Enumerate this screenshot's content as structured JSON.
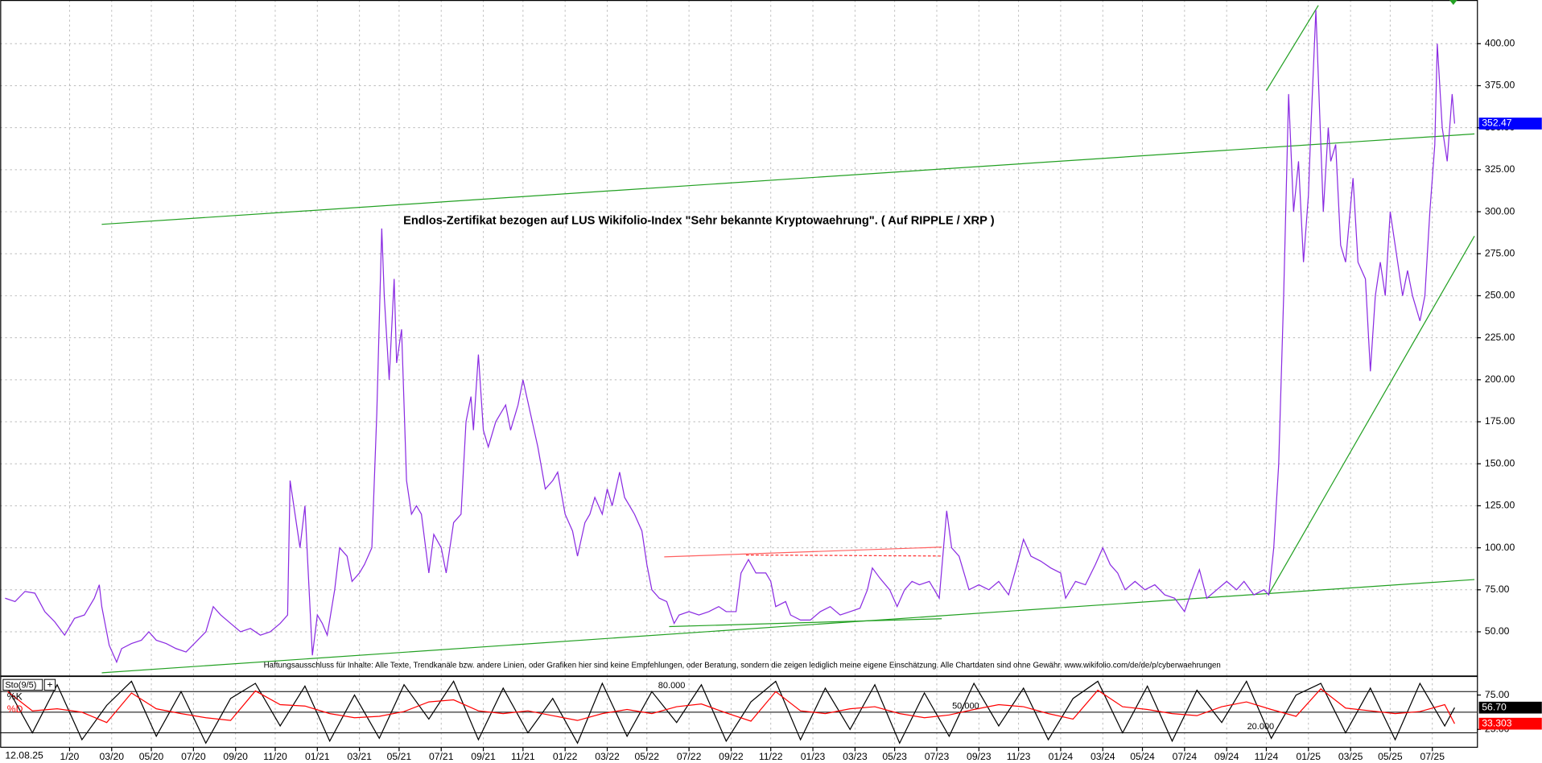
{
  "chart_data": [
    {
      "type": "line",
      "title": "Endlos-Zertifikat bezogen auf LUS Wikifolio-Index \"Sehr bekannte Kryptowaehrung\". ( Auf RIPPLE / XRP )",
      "note": "Haftungsausschluss für Inhalte: Alle Texte, Trendkanäle bzw. andere Linien, oder Grafiken hier sind keine Empfehlungen, oder Beratung, sondern die zeigen lediglich meine eigene Einschätzung. Alle Chartdaten sind ohne Gewähr.  www.wikifolio.com/de/de/p/cyberwaehrungen",
      "date": "12.08.25",
      "xlim": [
        2019.72,
        2025.68
      ],
      "xticks": [
        {
          "value": 2020.0,
          "label": "1/20"
        },
        {
          "value": 2020.17,
          "label": "03/20"
        },
        {
          "value": 2020.33,
          "label": "05/20"
        },
        {
          "value": 2020.5,
          "label": "07/20"
        },
        {
          "value": 2020.67,
          "label": "09/20"
        },
        {
          "value": 2020.83,
          "label": "11/20"
        },
        {
          "value": 2021.0,
          "label": "01/21"
        },
        {
          "value": 2021.17,
          "label": "03/21"
        },
        {
          "value": 2021.33,
          "label": "05/21"
        },
        {
          "value": 2021.5,
          "label": "07/21"
        },
        {
          "value": 2021.67,
          "label": "09/21"
        },
        {
          "value": 2021.83,
          "label": "11/21"
        },
        {
          "value": 2022.0,
          "label": "01/22"
        },
        {
          "value": 2022.17,
          "label": "03/22"
        },
        {
          "value": 2022.33,
          "label": "05/22"
        },
        {
          "value": 2022.5,
          "label": "07/22"
        },
        {
          "value": 2022.67,
          "label": "09/22"
        },
        {
          "value": 2022.83,
          "label": "11/22"
        },
        {
          "value": 2023.0,
          "label": "01/23"
        },
        {
          "value": 2023.17,
          "label": "03/23"
        },
        {
          "value": 2023.33,
          "label": "05/23"
        },
        {
          "value": 2023.5,
          "label": "07/23"
        },
        {
          "value": 2023.67,
          "label": "09/23"
        },
        {
          "value": 2023.83,
          "label": "11/23"
        },
        {
          "value": 2024.0,
          "label": "01/24"
        },
        {
          "value": 2024.17,
          "label": "03/24"
        },
        {
          "value": 2024.33,
          "label": "05/24"
        },
        {
          "value": 2024.5,
          "label": "07/24"
        },
        {
          "value": 2024.67,
          "label": "09/24"
        },
        {
          "value": 2024.83,
          "label": "11/24"
        },
        {
          "value": 2025.0,
          "label": "01/25"
        },
        {
          "value": 2025.17,
          "label": "03/25"
        },
        {
          "value": 2025.33,
          "label": "05/25"
        },
        {
          "value": 2025.5,
          "label": "07/25"
        }
      ],
      "ylim": [
        24,
        426
      ],
      "yticks": [
        {
          "value": 50,
          "label": "50.00"
        },
        {
          "value": 75,
          "label": "75.00"
        },
        {
          "value": 100,
          "label": "100.00"
        },
        {
          "value": 125,
          "label": "125.00"
        },
        {
          "value": 150,
          "label": "150.00"
        },
        {
          "value": 175,
          "label": "175.00"
        },
        {
          "value": 200,
          "label": "200.00"
        },
        {
          "value": 225,
          "label": "225.00"
        },
        {
          "value": 250,
          "label": "250.00"
        },
        {
          "value": 275,
          "label": "275.00"
        },
        {
          "value": 300,
          "label": "300.00"
        },
        {
          "value": 325,
          "label": "325.00"
        },
        {
          "value": 350,
          "label": "350.00"
        },
        {
          "value": 375,
          "label": "375.00"
        },
        {
          "value": 400,
          "label": "400.00"
        }
      ],
      "grid": true,
      "x": [
        2019.74,
        2019.78,
        2019.82,
        2019.86,
        2019.9,
        2019.94,
        2019.98,
        2020.02,
        2020.06,
        2020.1,
        2020.12,
        2020.13,
        2020.16,
        2020.19,
        2020.21,
        2020.25,
        2020.29,
        2020.32,
        2020.35,
        2020.39,
        2020.43,
        2020.47,
        2020.51,
        2020.55,
        2020.58,
        2020.61,
        2020.65,
        2020.69,
        2020.73,
        2020.77,
        2020.81,
        2020.85,
        2020.88,
        2020.89,
        2020.91,
        2020.93,
        2020.95,
        2020.96,
        2020.98,
        2021.0,
        2021.02,
        2021.04,
        2021.07,
        2021.09,
        2021.12,
        2021.14,
        2021.17,
        2021.19,
        2021.22,
        2021.24,
        2021.26,
        2021.27,
        2021.29,
        2021.31,
        2021.32,
        2021.34,
        2021.36,
        2021.38,
        2021.4,
        2021.42,
        2021.45,
        2021.47,
        2021.5,
        2021.52,
        2021.55,
        2021.58,
        2021.6,
        2021.62,
        2021.63,
        2021.65,
        2021.67,
        2021.69,
        2021.72,
        2021.74,
        2021.76,
        2021.78,
        2021.81,
        2021.83,
        2021.86,
        2021.89,
        2021.92,
        2021.95,
        2021.97,
        2022.0,
        2022.03,
        2022.05,
        2022.08,
        2022.1,
        2022.12,
        2022.15,
        2022.17,
        2022.19,
        2022.22,
        2022.24,
        2022.28,
        2022.31,
        2022.33,
        2022.35,
        2022.38,
        2022.41,
        2022.44,
        2022.46,
        2022.5,
        2022.54,
        2022.58,
        2022.62,
        2022.65,
        2022.69,
        2022.71,
        2022.74,
        2022.77,
        2022.81,
        2022.83,
        2022.85,
        2022.89,
        2022.91,
        2022.95,
        2022.99,
        2023.03,
        2023.07,
        2023.11,
        2023.15,
        2023.19,
        2023.22,
        2023.24,
        2023.27,
        2023.31,
        2023.34,
        2023.37,
        2023.4,
        2023.43,
        2023.47,
        2023.51,
        2023.54,
        2023.56,
        2023.59,
        2023.63,
        2023.67,
        2023.71,
        2023.75,
        2023.79,
        2023.82,
        2023.85,
        2023.88,
        2023.92,
        2023.96,
        2024.0,
        2024.02,
        2024.06,
        2024.1,
        2024.14,
        2024.17,
        2024.2,
        2024.23,
        2024.26,
        2024.3,
        2024.34,
        2024.38,
        2024.42,
        2024.46,
        2024.5,
        2024.53,
        2024.56,
        2024.59,
        2024.63,
        2024.67,
        2024.71,
        2024.74,
        2024.78,
        2024.82,
        2024.84,
        2024.86,
        2024.88,
        2024.9,
        2024.92,
        2024.94,
        2024.96,
        2024.98,
        2025.0,
        2025.01,
        2025.03,
        2025.04,
        2025.06,
        2025.08,
        2025.09,
        2025.11,
        2025.13,
        2025.15,
        2025.18,
        2025.2,
        2025.23,
        2025.25,
        2025.27,
        2025.29,
        2025.31,
        2025.33,
        2025.35,
        2025.38,
        2025.4,
        2025.42,
        2025.45,
        2025.47,
        2025.49,
        2025.51,
        2025.52,
        2025.54,
        2025.56,
        2025.58,
        2025.59
      ],
      "series": [
        {
          "color": "#8a2be2",
          "last_value_color": "#0000ff",
          "values": [
            70,
            68,
            74,
            73,
            62,
            56,
            48,
            58,
            60,
            70,
            78,
            65,
            42,
            32,
            40,
            43,
            45,
            50,
            45,
            43,
            40,
            38,
            44,
            50,
            65,
            60,
            55,
            50,
            52,
            48,
            50,
            55,
            60,
            140,
            120,
            100,
            125,
            95,
            36,
            60,
            55,
            48,
            75,
            100,
            95,
            80,
            85,
            90,
            100,
            180,
            290,
            250,
            200,
            260,
            210,
            230,
            140,
            120,
            125,
            120,
            85,
            108,
            100,
            85,
            115,
            120,
            175,
            190,
            170,
            215,
            170,
            160,
            175,
            180,
            185,
            170,
            185,
            200,
            180,
            160,
            135,
            140,
            145,
            120,
            110,
            95,
            115,
            120,
            130,
            120,
            135,
            125,
            145,
            130,
            120,
            110,
            90,
            75,
            70,
            68,
            55,
            60,
            62,
            60,
            62,
            65,
            62,
            62,
            85,
            93,
            85,
            85,
            80,
            65,
            68,
            60,
            57,
            57,
            62,
            65,
            60,
            62,
            64,
            75,
            88,
            82,
            75,
            65,
            75,
            80,
            78,
            80,
            70,
            122,
            100,
            95,
            75,
            78,
            75,
            80,
            72,
            88,
            105,
            95,
            92,
            88,
            85,
            70,
            80,
            78,
            90,
            100,
            90,
            85,
            75,
            80,
            75,
            78,
            72,
            70,
            62,
            75,
            87,
            70,
            75,
            80,
            75,
            80,
            72,
            75,
            72,
            100,
            150,
            250,
            370,
            300,
            330,
            270,
            310,
            350,
            420,
            380,
            300,
            350,
            330,
            340,
            280,
            270,
            320,
            270,
            260,
            205,
            250,
            270,
            250,
            300,
            280,
            250,
            265,
            250,
            235,
            250,
            300,
            340,
            400,
            350,
            330,
            370,
            352.47
          ]
        }
      ],
      "trendlines": [
        {
          "color": "#22a022",
          "x": [
            2020.13,
            2025.67
          ],
          "y": [
            292.5,
            346.3
          ]
        },
        {
          "color": "#22a022",
          "x": [
            2020.13,
            2025.67
          ],
          "y": [
            25.6,
            81.1
          ]
        },
        {
          "color": "#22a022",
          "x": [
            2024.84,
            2025.67
          ],
          "y": [
            72.4,
            285.5
          ]
        },
        {
          "color": "#22a022",
          "x": [
            2024.83,
            2025.04
          ],
          "y": [
            372,
            422.8
          ]
        },
        {
          "color": "#22a022",
          "x": [
            2022.42,
            2023.52
          ],
          "y": [
            53.1,
            57.8
          ]
        },
        {
          "color": "#ff6060",
          "x": [
            2022.4,
            2023.52
          ],
          "y": [
            94.6,
            100.4
          ]
        },
        {
          "color": "#ff3030",
          "dash": true,
          "x": [
            2022.73,
            2023.52
          ],
          "y": [
            95.7,
            95.1
          ]
        }
      ]
    },
    {
      "type": "line",
      "label": "Sto(9/5)",
      "xlim": [
        2019.72,
        2025.68
      ],
      "ylim": [
        -1,
        102
      ],
      "yticks": [
        {
          "value": 25,
          "label": "25.00"
        },
        {
          "value": 75,
          "label": "75.00"
        }
      ],
      "levels": [
        {
          "value": 80,
          "label": "80.000"
        },
        {
          "value": 50,
          "label": "50.000"
        },
        {
          "value": 20,
          "label": "20.000"
        }
      ],
      "x": [
        2019.75,
        2019.85,
        2019.95,
        2020.05,
        2020.15,
        2020.25,
        2020.35,
        2020.45,
        2020.55,
        2020.65,
        2020.75,
        2020.85,
        2020.95,
        2021.05,
        2021.15,
        2021.25,
        2021.35,
        2021.45,
        2021.55,
        2021.65,
        2021.75,
        2021.85,
        2021.95,
        2022.05,
        2022.15,
        2022.25,
        2022.35,
        2022.45,
        2022.55,
        2022.65,
        2022.75,
        2022.85,
        2022.95,
        2023.05,
        2023.15,
        2023.25,
        2023.35,
        2023.45,
        2023.55,
        2023.65,
        2023.75,
        2023.85,
        2023.95,
        2024.05,
        2024.15,
        2024.25,
        2024.35,
        2024.45,
        2024.55,
        2024.65,
        2024.75,
        2024.85,
        2024.95,
        2025.05,
        2025.15,
        2025.25,
        2025.35,
        2025.45,
        2025.55,
        2025.59
      ],
      "series": [
        {
          "name": "%K",
          "color": "#000000",
          "values": [
            85,
            20,
            90,
            10,
            60,
            95,
            15,
            80,
            5,
            70,
            92,
            30,
            88,
            8,
            75,
            12,
            90,
            40,
            95,
            10,
            85,
            20,
            70,
            5,
            92,
            15,
            80,
            35,
            90,
            8,
            65,
            95,
            10,
            85,
            25,
            90,
            5,
            78,
            15,
            92,
            30,
            85,
            10,
            70,
            95,
            20,
            88,
            8,
            82,
            35,
            95,
            12,
            75,
            92,
            20,
            85,
            10,
            92,
            30,
            56.7
          ],
          "value_labels": [
            null,
            null,
            null,
            null,
            null,
            null,
            null,
            null,
            null,
            null,
            null,
            null,
            null,
            null,
            null,
            null,
            null,
            null,
            null,
            null,
            null,
            null,
            null,
            null,
            null,
            null,
            null,
            null,
            null,
            null,
            null,
            null,
            null,
            null,
            null,
            null,
            null,
            null,
            null,
            null,
            null,
            null,
            null,
            null,
            null,
            null,
            null,
            null,
            null,
            null,
            null,
            null,
            null,
            null,
            null,
            null,
            null,
            null,
            null,
            "56.70"
          ]
        },
        {
          "name": "%D",
          "color": "#ff0000",
          "values": [
            80,
            52,
            55,
            50,
            35,
            78,
            55,
            48,
            42,
            38,
            81,
            61,
            59,
            48,
            42,
            44,
            51,
            65,
            68,
            52,
            48,
            52,
            45,
            38,
            48,
            54,
            48,
            58,
            62,
            49,
            37,
            80,
            52,
            48,
            55,
            58,
            48,
            42,
            46,
            54,
            61,
            58,
            48,
            40,
            82,
            58,
            54,
            48,
            45,
            58,
            65,
            54,
            44,
            84,
            56,
            52,
            48,
            51,
            61,
            33.303
          ]
        }
      ]
    }
  ]
}
